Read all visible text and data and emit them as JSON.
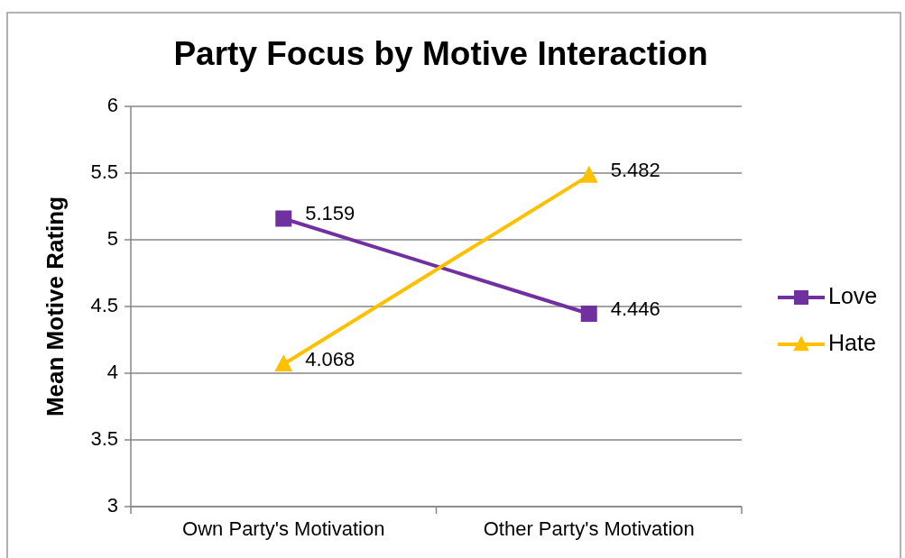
{
  "chart_data": {
    "type": "line",
    "title": "Party Focus by Motive Interaction",
    "ylabel": "Mean Motive Rating",
    "categories": [
      "Own Party's Motivation",
      "Other Party's Motivation"
    ],
    "series": [
      {
        "name": "Love",
        "color": "#7030a0",
        "values": [
          5.159,
          4.446
        ],
        "marker": "square"
      },
      {
        "name": "Hate",
        "color": "#ffc000",
        "values": [
          4.068,
          5.482
        ],
        "marker": "triangle"
      }
    ],
    "ylim": [
      3,
      6
    ],
    "yticks": [
      3,
      3.5,
      4,
      4.5,
      5,
      5.5,
      6
    ],
    "grid": "y",
    "legend": "right",
    "data_labels": true
  }
}
